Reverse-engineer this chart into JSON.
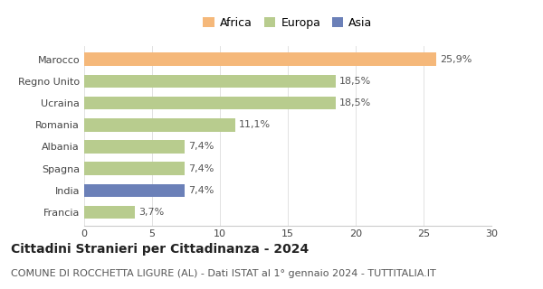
{
  "categories": [
    "Marocco",
    "Regno Unito",
    "Ucraina",
    "Romania",
    "Albania",
    "Spagna",
    "India",
    "Francia"
  ],
  "values": [
    25.9,
    18.5,
    18.5,
    11.1,
    7.4,
    7.4,
    7.4,
    3.7
  ],
  "labels": [
    "25,9%",
    "18,5%",
    "18,5%",
    "11,1%",
    "7,4%",
    "7,4%",
    "7,4%",
    "3,7%"
  ],
  "colors": [
    "#F5B87A",
    "#B8CC8E",
    "#B8CC8E",
    "#B8CC8E",
    "#B8CC8E",
    "#B8CC8E",
    "#6B80B8",
    "#B8CC8E"
  ],
  "legend": [
    {
      "label": "Africa",
      "color": "#F5B87A"
    },
    {
      "label": "Europa",
      "color": "#B8CC8E"
    },
    {
      "label": "Asia",
      "color": "#6B80B8"
    }
  ],
  "xlim": [
    0,
    30
  ],
  "xticks": [
    0,
    5,
    10,
    15,
    20,
    25,
    30
  ],
  "title": "Cittadini Stranieri per Cittadinanza - 2024",
  "subtitle": "COMUNE DI ROCCHETTA LIGURE (AL) - Dati ISTAT al 1° gennaio 2024 - TUTTITALIA.IT",
  "title_fontsize": 10,
  "subtitle_fontsize": 8,
  "label_fontsize": 8,
  "tick_fontsize": 8,
  "legend_fontsize": 9,
  "background_color": "#ffffff",
  "bar_height": 0.6
}
